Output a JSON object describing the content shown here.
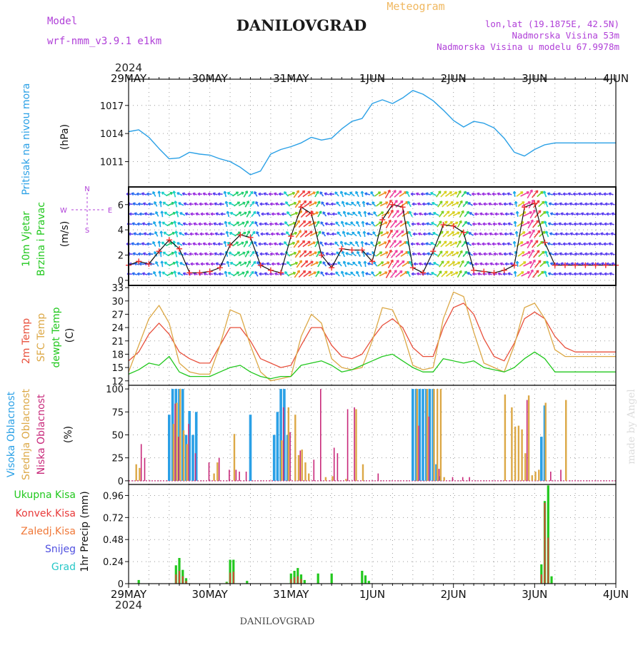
{
  "header": {
    "model_label": "Model",
    "model_name": "wrf-nmm_v3.9.1  e1km",
    "station": "DANILOVGRAD",
    "product": "Meteogram",
    "lonlat": "lon,lat (19.1875E, 42.5N)",
    "elevation": "Nadmorska Visina 53m",
    "elevation_model": "Nadmorska Visina u modelu 67.9978m",
    "year": "2024",
    "footer_station": "DANILOVGRAD",
    "credit": "made by Angel"
  },
  "colors": {
    "pressure": "#2aa0e6",
    "temp2m": "#e8503c",
    "sfc_temp": "#dca846",
    "dewpt": "#22c81e",
    "high_cloud": "#2aa0e6",
    "mid_cloud": "#dca846",
    "low_cloud": "#c8287a",
    "total_precip": "#22c81e",
    "conv_precip": "#e83a3a",
    "frozen_precip": "#f07838",
    "snow": "#5050e0",
    "hail": "#28c8c8",
    "label_purple": "#b040d8",
    "meteogram_title": "#f0b860"
  },
  "x_axis": {
    "top_labels": [
      "29MAY",
      "30MAY",
      "31MAY",
      "1JUN",
      "2JUN",
      "3JUN",
      "4JUN"
    ],
    "bottom_labels": [
      "29MAY",
      "30MAY",
      "31MAY",
      "1JUN",
      "2JUN",
      "3JUN",
      "4JUN"
    ]
  },
  "panels": {
    "pressure": {
      "label": "Pritisak na nivou mora",
      "unit": "(hPa)"
    },
    "wind": {
      "label1": "10m Vjetar",
      "label2": "Brzina i Pravac",
      "unit": "(m/s)",
      "compass_n": "N",
      "compass_s": "S",
      "compass_w": "W",
      "compass_e": "E"
    },
    "temp": {
      "label1": "2m Temp",
      "label2": "SFC Temp",
      "label3": "dewpt Temp",
      "unit": "(C)"
    },
    "cloud": {
      "label1": "Visoka Oblacnost",
      "label2": "Srednja Oblacnost",
      "label3": "Niska Oblacnost",
      "unit": "(%)"
    },
    "precip": {
      "legend": [
        "Ukupna Kisa",
        "Konvek.Kisa",
        "Zaledj.Kisa",
        "Snijeg",
        "Grad"
      ],
      "unit": "1hr Precip (mm)"
    }
  },
  "chart_data": [
    {
      "type": "line",
      "name": "pressure",
      "ylabel": "(hPa)",
      "ylim": [
        1008.3,
        1019.8
      ],
      "yticks": [
        1011,
        1014,
        1017
      ],
      "x_hours": [
        0,
        3,
        6,
        9,
        12,
        15,
        18,
        21,
        24,
        27,
        30,
        33,
        36,
        39,
        42,
        45,
        48,
        51,
        54,
        57,
        60,
        63,
        66,
        69,
        72,
        75,
        78,
        81,
        84,
        87,
        90,
        93,
        96,
        99,
        102,
        105,
        108,
        111,
        114,
        117,
        120,
        123,
        126,
        129,
        132,
        135,
        138,
        141,
        144
      ],
      "series": [
        {
          "name": "Pritisak na nivou mora",
          "values": [
            1014.2,
            1014.4,
            1013.6,
            1012.4,
            1011.3,
            1011.4,
            1012.0,
            1011.8,
            1011.7,
            1011.3,
            1011.0,
            1010.4,
            1009.6,
            1010.0,
            1011.8,
            1012.3,
            1012.6,
            1013.0,
            1013.6,
            1013.3,
            1013.5,
            1014.5,
            1015.3,
            1015.6,
            1017.2,
            1017.6,
            1017.2,
            1017.8,
            1018.6,
            1018.2,
            1017.5,
            1016.5,
            1015.4,
            1014.7,
            1015.3,
            1015.1,
            1014.6,
            1013.5,
            1012.0,
            1011.6,
            1012.3,
            1012.8,
            1013.0,
            1013.0,
            1013.0,
            1013.0,
            1013.0,
            1013.0,
            1013.0
          ]
        }
      ]
    },
    {
      "type": "line",
      "name": "wind",
      "ylabel": "(m/s)",
      "ylim": [
        -0.4,
        7.4
      ],
      "yticks": [
        0,
        2,
        4,
        6
      ],
      "x_hours": [
        0,
        3,
        6,
        9,
        12,
        15,
        18,
        21,
        24,
        27,
        30,
        33,
        36,
        39,
        42,
        45,
        48,
        51,
        54,
        57,
        60,
        63,
        66,
        69,
        72,
        75,
        78,
        81,
        84,
        87,
        90,
        93,
        96,
        99,
        102,
        105,
        108,
        111,
        114,
        117,
        120,
        123,
        126,
        129,
        132,
        135,
        138,
        141,
        144
      ],
      "series": [
        {
          "name": "10m Vjetar",
          "values": [
            1.2,
            1.5,
            1.3,
            2.3,
            3.2,
            2.5,
            0.6,
            0.6,
            0.7,
            1.0,
            2.8,
            3.6,
            3.4,
            1.2,
            0.8,
            0.6,
            3.5,
            5.8,
            5.3,
            2.0,
            1.0,
            2.5,
            2.4,
            2.4,
            1.5,
            4.8,
            6.0,
            5.8,
            1.0,
            0.6,
            2.3,
            4.4,
            4.3,
            3.8,
            0.8,
            0.7,
            0.6,
            0.8,
            1.2,
            5.8,
            6.1,
            3.0,
            1.2,
            1.2,
            1.2,
            1.2,
            1.2,
            1.2,
            1.2
          ]
        }
      ]
    },
    {
      "type": "line",
      "name": "temperature",
      "ylabel": "(C)",
      "ylim": [
        11,
        33.5
      ],
      "yticks": [
        12,
        15,
        18,
        21,
        24,
        27,
        30,
        33
      ],
      "x_hours": [
        0,
        3,
        6,
        9,
        12,
        15,
        18,
        21,
        24,
        27,
        30,
        33,
        36,
        39,
        42,
        45,
        48,
        51,
        54,
        57,
        60,
        63,
        66,
        69,
        72,
        75,
        78,
        81,
        84,
        87,
        90,
        93,
        96,
        99,
        102,
        105,
        108,
        111,
        114,
        117,
        120,
        123,
        126,
        129,
        132,
        135,
        138,
        141,
        144
      ],
      "series": [
        {
          "name": "2m Temp",
          "values": [
            16.5,
            18.5,
            22.5,
            25.0,
            22.5,
            18.5,
            17.0,
            16.0,
            16.0,
            20.0,
            24.0,
            24.0,
            21.0,
            17.0,
            16.0,
            15.0,
            15.5,
            20.0,
            24.0,
            24.0,
            20.0,
            17.5,
            17.0,
            18.0,
            21.5,
            24.5,
            26.0,
            24.0,
            19.5,
            17.5,
            17.5,
            24.0,
            28.5,
            29.5,
            27.0,
            21.5,
            17.5,
            16.5,
            20.5,
            26.0,
            27.5,
            26.0,
            22.0,
            19.5,
            18.5,
            18.5,
            18.5,
            18.5,
            18.5
          ]
        },
        {
          "name": "SFC Temp",
          "values": [
            14.0,
            20.0,
            26.0,
            29.0,
            25.0,
            16.0,
            14.0,
            13.5,
            13.5,
            20.0,
            28.0,
            27.0,
            20.0,
            14.0,
            12.0,
            12.5,
            13.0,
            22.0,
            27.0,
            25.0,
            17.0,
            15.0,
            14.5,
            15.0,
            21.0,
            28.5,
            28.0,
            23.0,
            15.5,
            14.5,
            15.0,
            26.0,
            32.0,
            31.0,
            23.0,
            16.0,
            15.0,
            14.0,
            20.0,
            28.5,
            29.5,
            26.0,
            19.0,
            17.5,
            17.5,
            17.5,
            17.5,
            17.5,
            17.5
          ]
        },
        {
          "name": "dewpt Temp",
          "values": [
            13.5,
            14.5,
            16.0,
            15.5,
            17.5,
            14.0,
            13.0,
            13.0,
            13.0,
            14.0,
            15.0,
            15.5,
            14.0,
            13.0,
            12.5,
            13.0,
            13.0,
            15.5,
            16.0,
            16.5,
            15.5,
            14.0,
            14.5,
            15.5,
            16.5,
            17.5,
            18.0,
            16.5,
            15.0,
            14.0,
            14.0,
            17.0,
            16.5,
            16.0,
            16.5,
            15.0,
            14.5,
            14.0,
            15.0,
            17.0,
            18.5,
            17.0,
            14.0,
            14.0,
            14.0,
            14.0,
            14.0,
            14.0,
            14.0
          ]
        }
      ]
    },
    {
      "type": "bar",
      "name": "cloud",
      "ylabel": "(%)",
      "ylim": [
        -4,
        104
      ],
      "yticks": [
        0,
        25,
        50,
        75,
        100
      ],
      "series": [
        {
          "name": "Visoka Oblacnost",
          "x_hours": [
            12,
            13,
            14,
            15,
            16,
            17,
            18,
            19,
            20,
            21,
            22,
            23,
            36,
            43,
            44,
            45,
            46,
            47,
            48,
            49,
            50,
            51,
            84,
            85,
            86,
            87,
            88,
            89,
            90,
            91,
            92,
            93,
            122,
            123
          ],
          "values": [
            72,
            100,
            100,
            100,
            100,
            50,
            76,
            50,
            75,
            0,
            0,
            0,
            72,
            50,
            75,
            100,
            100,
            50,
            0,
            0,
            0,
            0,
            100,
            100,
            100,
            100,
            100,
            100,
            100,
            18,
            5,
            0,
            48,
            82
          ]
        },
        {
          "name": "Srednja Oblacnost",
          "x_hours": [
            2,
            3,
            13,
            14,
            15,
            16,
            17,
            25,
            26,
            31,
            45,
            47,
            49,
            50,
            51,
            52,
            53,
            58,
            60,
            64,
            67,
            69,
            85,
            88,
            90,
            91,
            92,
            93,
            111,
            113,
            114,
            115,
            116,
            117,
            118,
            119,
            120,
            121,
            123,
            129
          ],
          "values": [
            18,
            14,
            62,
            85,
            100,
            55,
            40,
            8,
            20,
            51,
            44,
            80,
            72,
            28,
            34,
            20,
            8,
            4,
            5,
            2,
            78,
            18,
            100,
            100,
            100,
            100,
            100,
            4,
            94,
            80,
            59,
            60,
            56,
            30,
            93,
            6,
            10,
            12,
            85,
            88
          ]
        },
        {
          "name": "Niska Oblacnost",
          "x_hours": [
            4,
            5,
            14,
            15,
            18,
            20,
            24,
            27,
            30,
            32,
            33,
            35,
            46,
            48,
            51,
            55,
            57,
            61,
            62,
            65,
            67,
            74,
            86,
            89,
            92,
            96,
            99,
            101,
            118,
            125,
            128
          ],
          "values": [
            40,
            25,
            84,
            48,
            62,
            30,
            20,
            25,
            12,
            12,
            10,
            10,
            80,
            53,
            33,
            23,
            100,
            36,
            30,
            78,
            80,
            8,
            60,
            70,
            13,
            4,
            4,
            4,
            88,
            10,
            12
          ]
        }
      ]
    },
    {
      "type": "bar",
      "name": "precip",
      "ylabel": "1hr Precip (mm)",
      "ylim": [
        0,
        1.08
      ],
      "yticks": [
        0,
        0.24,
        0.48,
        0.72,
        0.96
      ],
      "series": [
        {
          "name": "Ukupna Kisa",
          "x_hours": [
            3,
            14,
            15,
            16,
            17,
            29,
            30,
            31,
            35,
            48,
            49,
            50,
            51,
            52,
            56,
            60,
            69,
            70,
            71,
            122,
            123,
            124,
            125
          ],
          "values": [
            0.04,
            0.2,
            0.28,
            0.15,
            0.06,
            0.02,
            0.26,
            0.26,
            0.03,
            0.11,
            0.14,
            0.17,
            0.1,
            0.04,
            0.11,
            0.11,
            0.14,
            0.09,
            0.03,
            0.21,
            0.9,
            1.07,
            0.08
          ]
        },
        {
          "name": "Konvek.Kisa",
          "x_hours": [
            14,
            15,
            16,
            17,
            29,
            30,
            31,
            48,
            49,
            50,
            51,
            122,
            123,
            124
          ],
          "values": [
            0.1,
            0.14,
            0.08,
            0.03,
            0.01,
            0.12,
            0.13,
            0.05,
            0.07,
            0.08,
            0.05,
            0.1,
            0.88,
            0.5
          ]
        }
      ]
    }
  ]
}
